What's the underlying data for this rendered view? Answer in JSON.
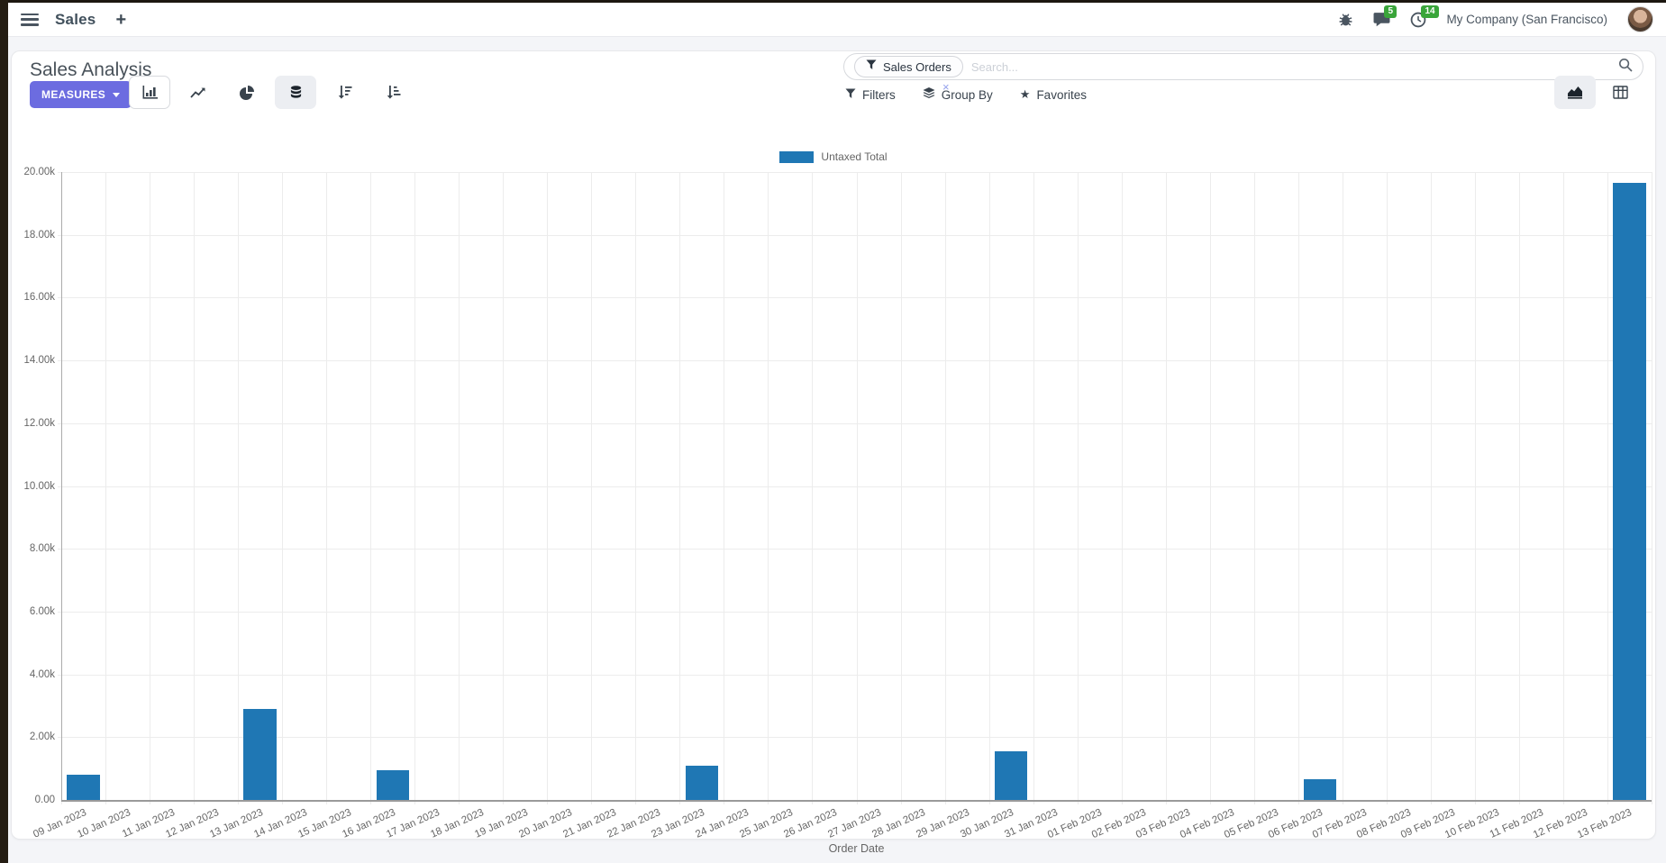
{
  "navbar": {
    "app_title": "Sales",
    "message_badge": "5",
    "activity_badge": "14",
    "company": "My Company (San Francisco)"
  },
  "control_panel": {
    "title": "Sales Analysis",
    "measures_label": "MEASURES",
    "search": {
      "facet": "Sales Orders",
      "placeholder": "Search...",
      "facet_remove": "×"
    },
    "filters_label": "Filters",
    "group_by_label": "Group By",
    "favorites_label": "Favorites"
  },
  "icons": {
    "hamburger-icon": "menu",
    "plus-icon": "+",
    "bug-icon": "bug",
    "messages-icon": "chat-bubble",
    "activities-icon": "clock",
    "bar-chart-icon": "bar-chart",
    "line-chart-icon": "line-chart",
    "pie-chart-icon": "pie-chart",
    "stacked-icon": "database",
    "sort-desc-icon": "sort-amount-desc",
    "sort-asc-icon": "sort-amount-asc",
    "filter-icon": "funnel",
    "group-by-icon": "layers",
    "favorites-icon": "star",
    "search-icon": "magnifier",
    "area-view-icon": "area-chart",
    "pivot-view-icon": "table-grid",
    "close-icon": "×"
  },
  "colors": {
    "accent": "#6c6ce0",
    "bar": "#1f77b4",
    "badge_green": "#3aa53a"
  },
  "chart_data": {
    "type": "bar",
    "title": "",
    "xlabel": "Order Date",
    "ylabel": "",
    "ylim": [
      0,
      20000
    ],
    "y_tick_step": 2000,
    "grid": true,
    "legend_position": "top",
    "categories": [
      "09 Jan 2023",
      "10 Jan 2023",
      "11 Jan 2023",
      "12 Jan 2023",
      "13 Jan 2023",
      "14 Jan 2023",
      "15 Jan 2023",
      "16 Jan 2023",
      "17 Jan 2023",
      "18 Jan 2023",
      "19 Jan 2023",
      "20 Jan 2023",
      "21 Jan 2023",
      "22 Jan 2023",
      "23 Jan 2023",
      "24 Jan 2023",
      "25 Jan 2023",
      "26 Jan 2023",
      "27 Jan 2023",
      "28 Jan 2023",
      "29 Jan 2023",
      "30 Jan 2023",
      "31 Jan 2023",
      "01 Feb 2023",
      "02 Feb 2023",
      "03 Feb 2023",
      "04 Feb 2023",
      "05 Feb 2023",
      "06 Feb 2023",
      "07 Feb 2023",
      "08 Feb 2023",
      "09 Feb 2023",
      "10 Feb 2023",
      "11 Feb 2023",
      "12 Feb 2023",
      "13 Feb 2023"
    ],
    "series": [
      {
        "name": "Untaxed Total",
        "color": "#1f77b4",
        "values": [
          800,
          0,
          0,
          0,
          2900,
          0,
          0,
          950,
          0,
          0,
          0,
          0,
          0,
          0,
          1080,
          0,
          0,
          0,
          0,
          0,
          0,
          1540,
          0,
          0,
          0,
          0,
          0,
          0,
          660,
          0,
          0,
          0,
          0,
          0,
          0,
          19650
        ]
      }
    ]
  }
}
